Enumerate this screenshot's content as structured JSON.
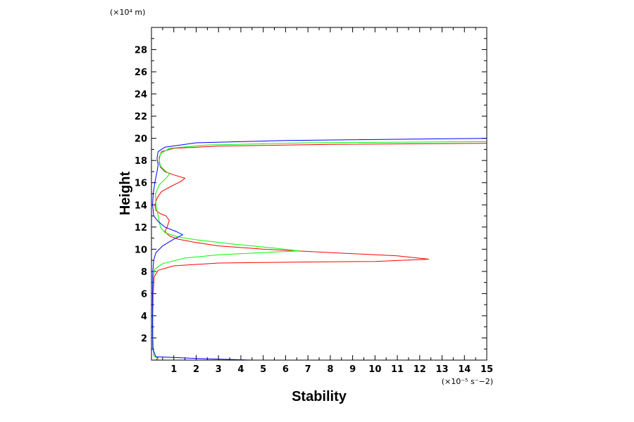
{
  "chart_data": {
    "type": "line",
    "title": "",
    "xlabel": "Stability",
    "ylabel": "Height",
    "x_unit_label": "(×10⁻⁵ s⁻−2)",
    "y_unit_label": "(×10⁴ m)",
    "xlim": [
      0,
      15
    ],
    "ylim": [
      0,
      30
    ],
    "x_ticks": [
      1,
      2,
      3,
      4,
      5,
      6,
      7,
      8,
      9,
      10,
      11,
      12,
      13,
      14,
      15
    ],
    "y_ticks": [
      2,
      4,
      6,
      8,
      10,
      12,
      14,
      16,
      18,
      20,
      22,
      24,
      26,
      28
    ],
    "grid": false,
    "legend": "none",
    "series": [
      {
        "color": "#ff0000",
        "points": [
          [
            0.2,
            0
          ],
          [
            0.3,
            0.2
          ],
          [
            0.1,
            0.4
          ],
          [
            0.06,
            2
          ],
          [
            0.06,
            4
          ],
          [
            0.08,
            6
          ],
          [
            0.12,
            7.5
          ],
          [
            0.3,
            8.1
          ],
          [
            1.0,
            8.5
          ],
          [
            3.0,
            8.75
          ],
          [
            7.0,
            8.85
          ],
          [
            10.0,
            8.9
          ],
          [
            12.4,
            9.1
          ],
          [
            11.0,
            9.4
          ],
          [
            8.0,
            9.7
          ],
          [
            5.0,
            10.0
          ],
          [
            3.0,
            10.3
          ],
          [
            2.0,
            10.6
          ],
          [
            1.2,
            10.9
          ],
          [
            0.8,
            11.2
          ],
          [
            0.6,
            11.6
          ],
          [
            0.7,
            12.0
          ],
          [
            0.8,
            12.6
          ],
          [
            0.65,
            13.0
          ],
          [
            0.4,
            13.2
          ],
          [
            0.2,
            13.5
          ],
          [
            0.15,
            14.0
          ],
          [
            0.25,
            14.6
          ],
          [
            0.45,
            15.2
          ],
          [
            0.9,
            15.7
          ],
          [
            1.3,
            16.1
          ],
          [
            1.5,
            16.4
          ],
          [
            1.0,
            16.7
          ],
          [
            0.6,
            17.0
          ],
          [
            0.4,
            17.4
          ],
          [
            0.35,
            17.8
          ],
          [
            0.35,
            18.3
          ],
          [
            0.45,
            18.8
          ],
          [
            1.0,
            19.1
          ],
          [
            3.0,
            19.3
          ],
          [
            8.0,
            19.45
          ],
          [
            15.0,
            19.55
          ]
        ]
      },
      {
        "color": "#00ff00",
        "points": [
          [
            0.3,
            0
          ],
          [
            0.25,
            0.2
          ],
          [
            0.1,
            0.4
          ],
          [
            0.06,
            2
          ],
          [
            0.06,
            4
          ],
          [
            0.06,
            6
          ],
          [
            0.08,
            7.5
          ],
          [
            0.15,
            8.2
          ],
          [
            0.5,
            8.7
          ],
          [
            1.5,
            9.2
          ],
          [
            3.0,
            9.5
          ],
          [
            5.0,
            9.7
          ],
          [
            6.6,
            9.85
          ],
          [
            5.5,
            10.1
          ],
          [
            3.5,
            10.5
          ],
          [
            2.0,
            10.85
          ],
          [
            1.2,
            11.1
          ],
          [
            0.6,
            11.5
          ],
          [
            0.4,
            12.0
          ],
          [
            0.3,
            13.0
          ],
          [
            0.2,
            14.0
          ],
          [
            0.18,
            15.0
          ],
          [
            0.35,
            15.8
          ],
          [
            0.7,
            16.5
          ],
          [
            0.8,
            16.8
          ],
          [
            0.6,
            17.1
          ],
          [
            0.4,
            17.5
          ],
          [
            0.35,
            18.0
          ],
          [
            0.4,
            18.6
          ],
          [
            0.8,
            19.1
          ],
          [
            2.5,
            19.4
          ],
          [
            7.0,
            19.6
          ],
          [
            15.0,
            19.7
          ]
        ]
      },
      {
        "color": "#0000ff",
        "points": [
          [
            4.5,
            0
          ],
          [
            2.0,
            0.15
          ],
          [
            0.2,
            0.3
          ],
          [
            0.06,
            1
          ],
          [
            0.05,
            3
          ],
          [
            0.05,
            6
          ],
          [
            0.06,
            8
          ],
          [
            0.1,
            9.0
          ],
          [
            0.2,
            9.7
          ],
          [
            0.5,
            10.3
          ],
          [
            1.0,
            10.9
          ],
          [
            1.4,
            11.3
          ],
          [
            1.1,
            11.6
          ],
          [
            0.6,
            12.0
          ],
          [
            0.3,
            12.5
          ],
          [
            0.1,
            13.0
          ],
          [
            0.05,
            14.0
          ],
          [
            0.08,
            15.0
          ],
          [
            0.15,
            16.0
          ],
          [
            0.25,
            17.0
          ],
          [
            0.3,
            17.6
          ],
          [
            0.25,
            18.2
          ],
          [
            0.3,
            18.8
          ],
          [
            0.6,
            19.2
          ],
          [
            2.0,
            19.6
          ],
          [
            6.0,
            19.8
          ],
          [
            15.0,
            20.0
          ]
        ]
      }
    ]
  }
}
